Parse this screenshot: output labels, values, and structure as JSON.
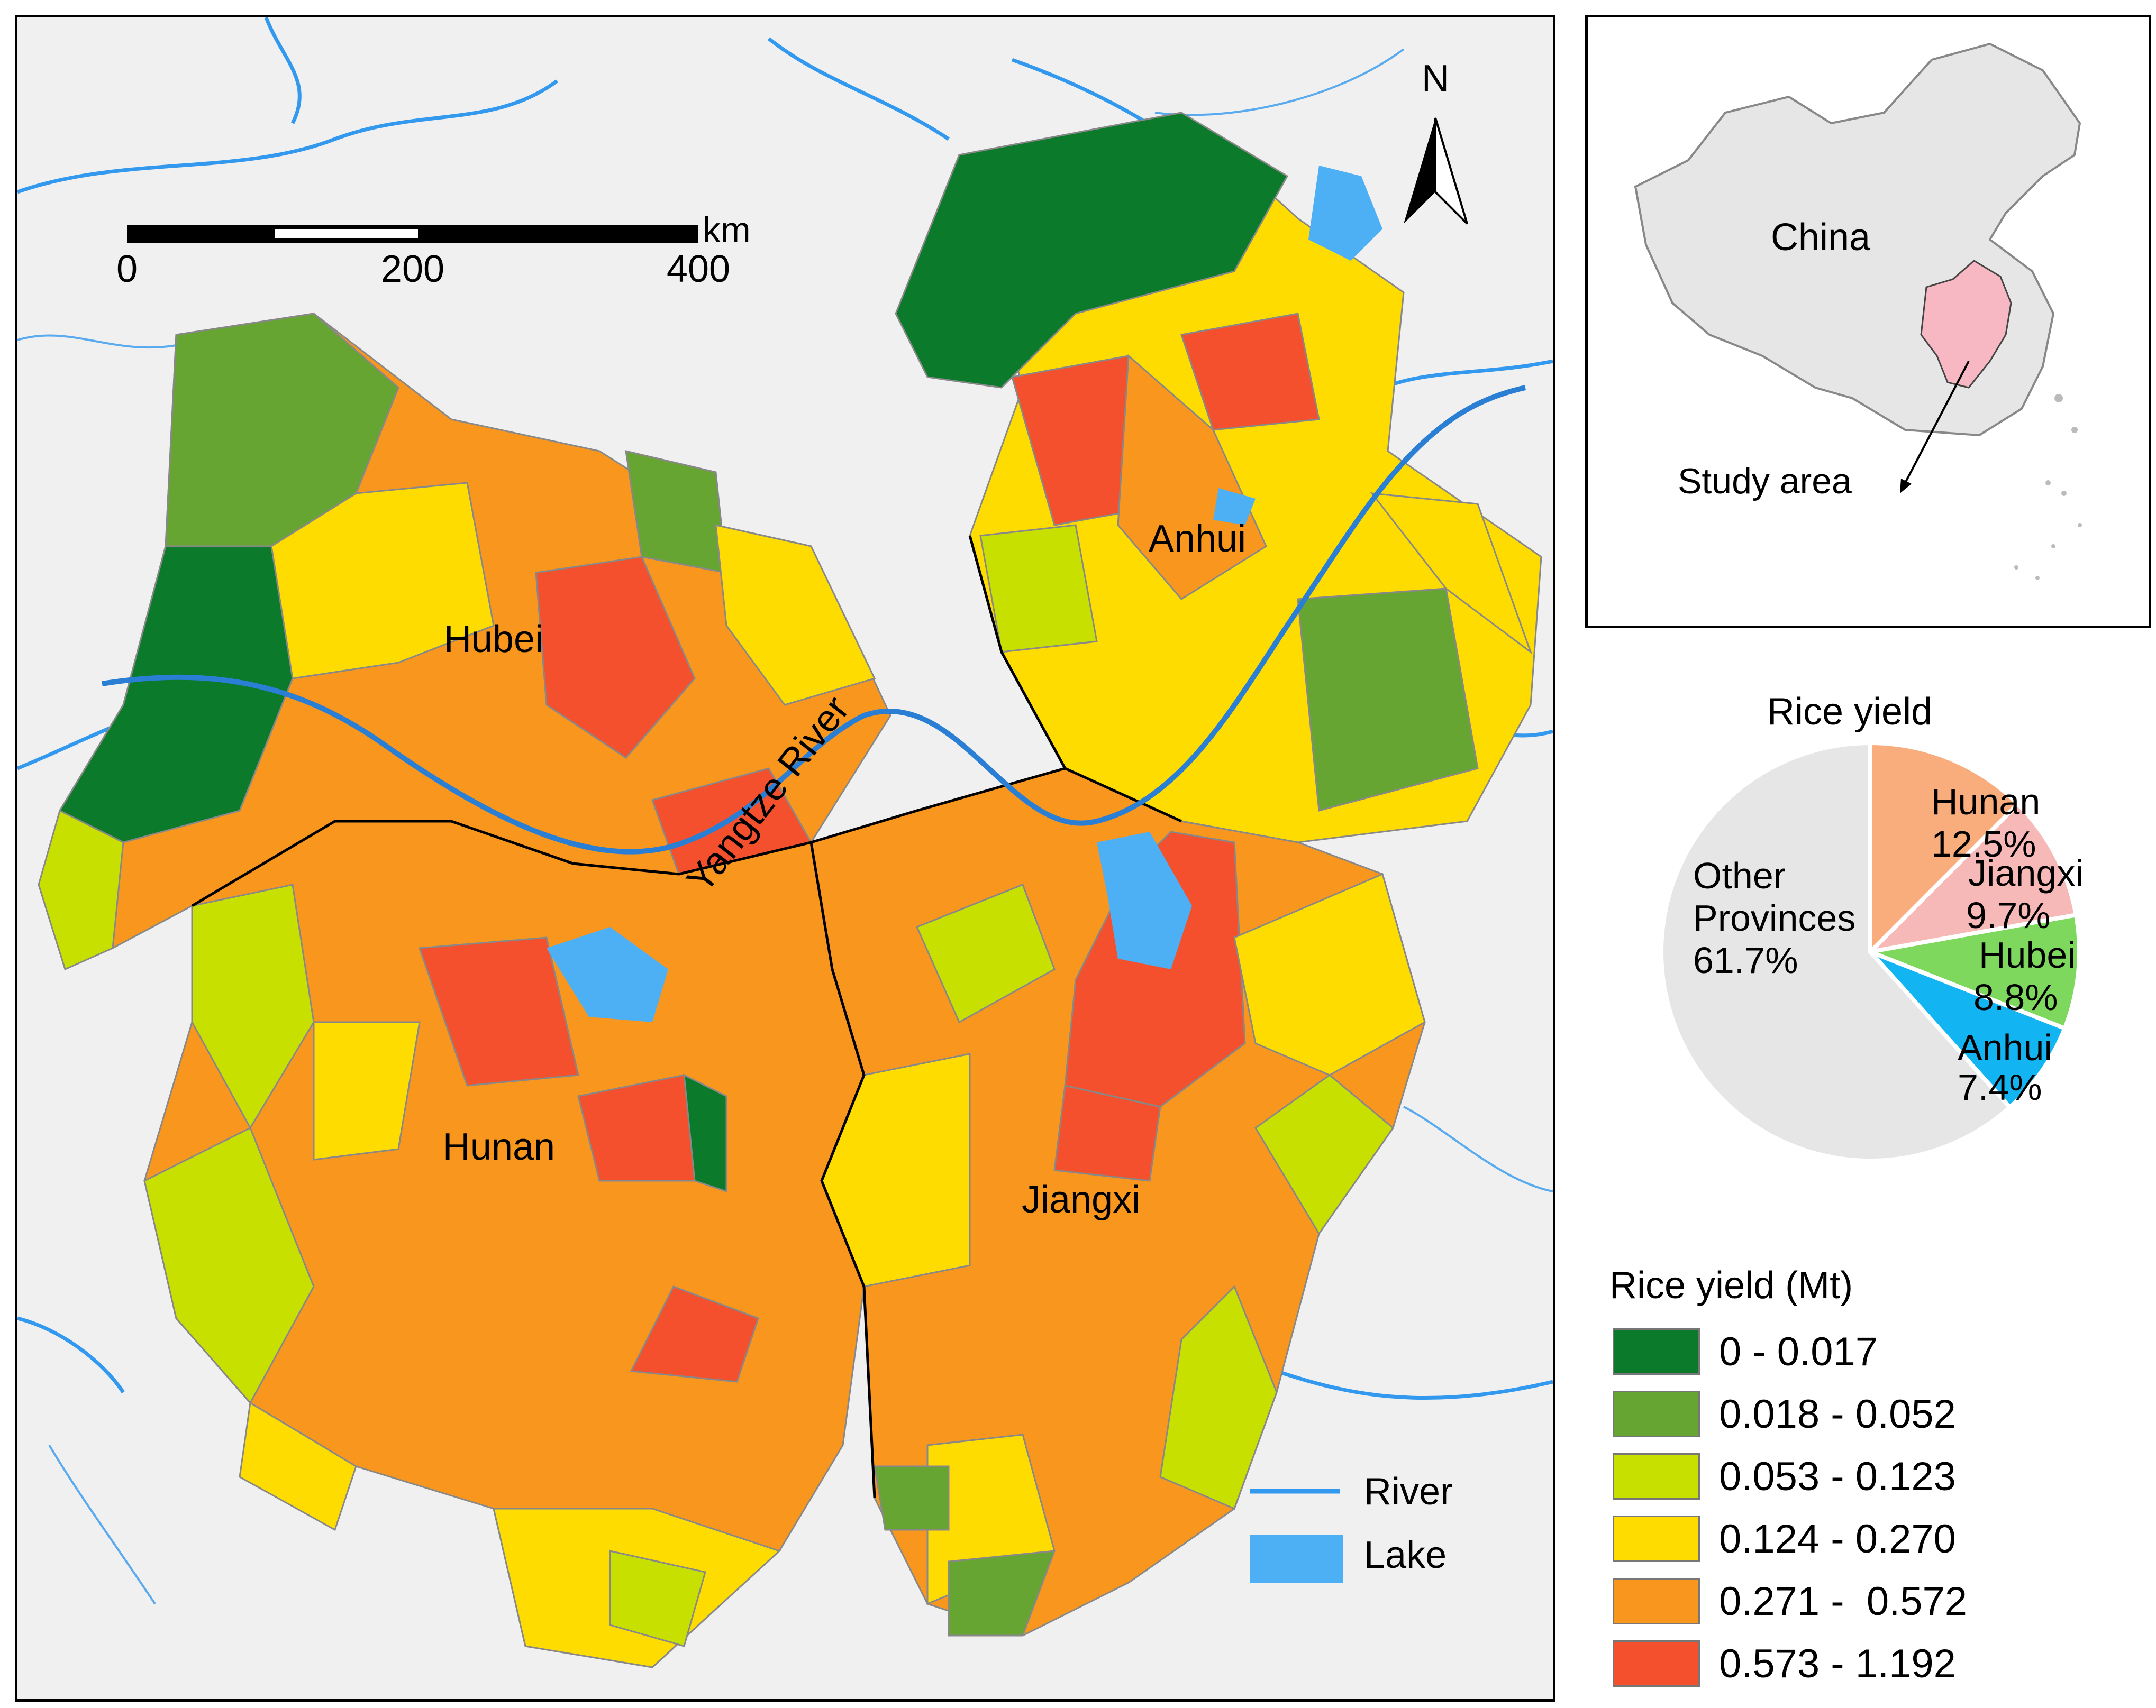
{
  "map": {
    "north_label": "N",
    "scale_bar": {
      "unit": "km",
      "ticks": [
        "0",
        "200",
        "400"
      ]
    },
    "province_labels": {
      "hubei": "Hubei",
      "anhui": "Anhui",
      "hunan": "Hunan",
      "jiangxi": "Jiangxi"
    },
    "river_label": "Yangtze River",
    "feature_legend": {
      "river": "River",
      "lake": "Lake"
    },
    "colors": {
      "river": "#3399ee",
      "lake": "#4db0f5",
      "background": "#f0f0f0"
    }
  },
  "inset": {
    "country_label": "China",
    "study_area_label": "Study area"
  },
  "chart_data": {
    "type": "pie",
    "title": "Rice yield",
    "slices": [
      {
        "label": "Hunan",
        "value": 12.5,
        "display": "12.5%",
        "color": "#f9ad7d"
      },
      {
        "label": "Jiangxi",
        "value": 9.7,
        "display": "9.7%",
        "color": "#f7b8b8"
      },
      {
        "label": "Hubei",
        "value": 8.8,
        "display": "8.8%",
        "color": "#7ed85e"
      },
      {
        "label": "Anhui",
        "value": 7.4,
        "display": "7.4%",
        "color": "#12b4f2"
      },
      {
        "label": "Other Provinces",
        "value": 61.7,
        "display": "61.7%",
        "color": "#e6e6e6"
      }
    ]
  },
  "yield_legend": {
    "title": "Rice yield (Mt)",
    "classes": [
      {
        "label": "0 - 0.017",
        "color": "#0b7a2a"
      },
      {
        "label": "0.018 - 0.052",
        "color": "#67a532"
      },
      {
        "label": "0.053 - 0.123",
        "color": "#c8e000"
      },
      {
        "label": "0.124 - 0.270",
        "color": "#ffdc00"
      },
      {
        "label": "0.271 -  0.572",
        "color": "#f9961e"
      },
      {
        "label": "0.573 - 1.192",
        "color": "#f4502e"
      }
    ]
  }
}
